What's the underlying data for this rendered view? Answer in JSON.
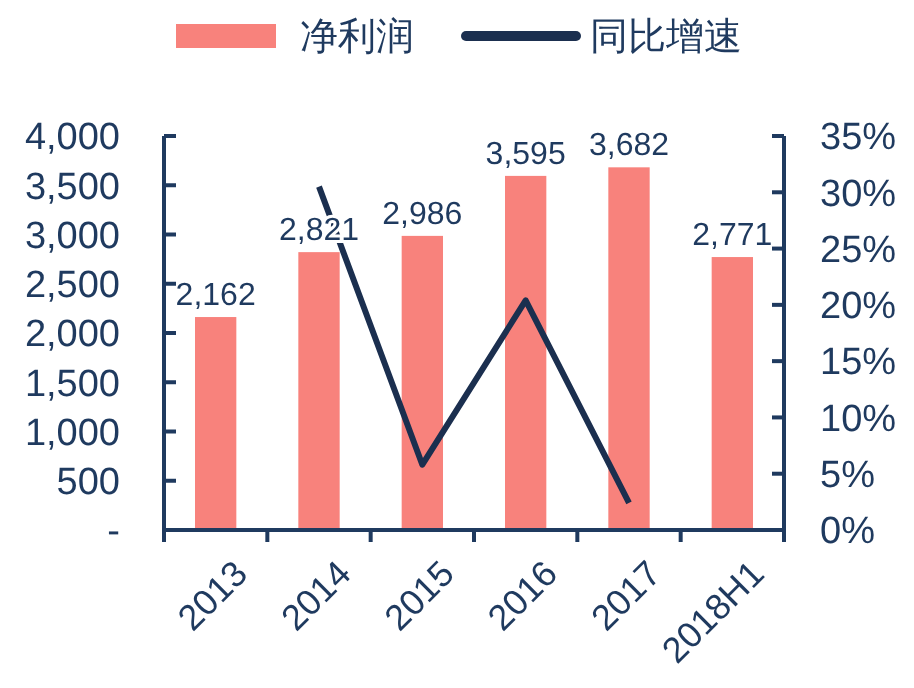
{
  "chart_data": {
    "type": "bar",
    "categories": [
      "2013",
      "2014",
      "2015",
      "2016",
      "2017",
      "2018H1"
    ],
    "series": [
      {
        "name": "净利润",
        "color": "#f8827c",
        "values": [
          2162,
          2821,
          2986,
          3595,
          3682,
          2771
        ],
        "value_labels": [
          "2,162",
          "2,821",
          "2,986",
          "3,595",
          "3,682",
          "2,771"
        ]
      },
      {
        "name": "同比增速",
        "type": "line",
        "axis": "y2",
        "color": "#1b2f4f",
        "values": [
          null,
          30.5,
          5.8,
          20.4,
          2.4,
          null
        ]
      }
    ],
    "ylim": [
      0,
      4000
    ],
    "yticks": [
      {
        "value": 0,
        "label": "-"
      },
      {
        "value": 500,
        "label": "500"
      },
      {
        "value": 1000,
        "label": "1,000"
      },
      {
        "value": 1500,
        "label": "1,500"
      },
      {
        "value": 2000,
        "label": "2,000"
      },
      {
        "value": 2500,
        "label": "2,500"
      },
      {
        "value": 3000,
        "label": "3,000"
      },
      {
        "value": 3500,
        "label": "3,500"
      },
      {
        "value": 4000,
        "label": "4,000"
      }
    ],
    "y2lim": [
      0,
      35
    ],
    "y2ticks": [
      {
        "value": 0,
        "label": "0%"
      },
      {
        "value": 5,
        "label": "5%"
      },
      {
        "value": 10,
        "label": "10%"
      },
      {
        "value": 15,
        "label": "15%"
      },
      {
        "value": 20,
        "label": "20%"
      },
      {
        "value": 25,
        "label": "25%"
      },
      {
        "value": 30,
        "label": "30%"
      },
      {
        "value": 35,
        "label": "35%"
      }
    ],
    "legend": "top",
    "grid": false
  }
}
